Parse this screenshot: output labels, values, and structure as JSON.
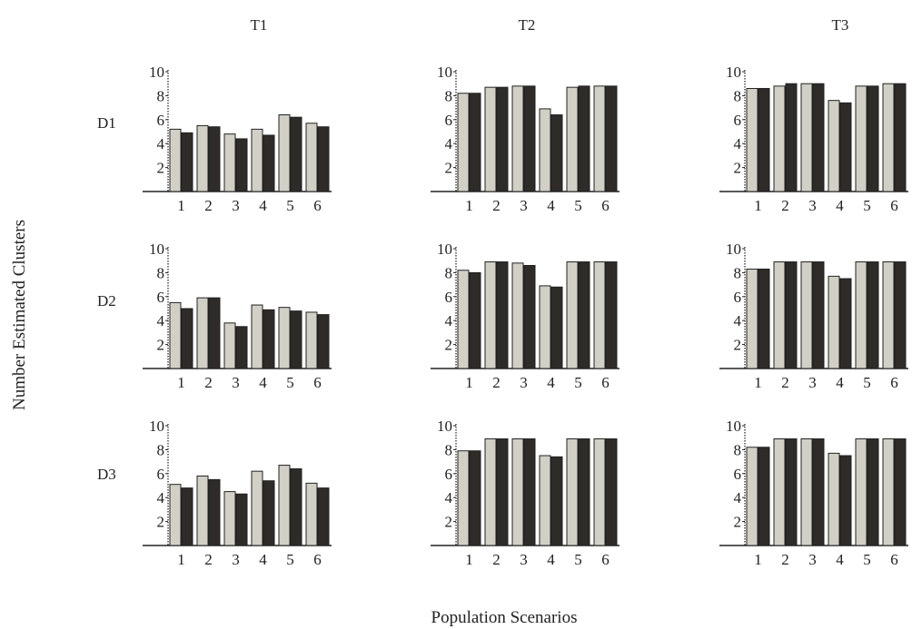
{
  "figure": {
    "y_title": "Number Estimated Clusters",
    "x_title": "Population Scenarios",
    "col_titles": [
      "T1",
      "T2",
      "T3"
    ],
    "row_titles": [
      "D1",
      "D2",
      "D3"
    ]
  },
  "colors": {
    "light_bar": "#d2d0c6",
    "dark_bar": "#2e2b28",
    "axis": "#222222"
  },
  "chart_data": [
    {
      "type": "bar",
      "row": "D1",
      "col": "T1",
      "categories": [
        "1",
        "2",
        "3",
        "4",
        "5",
        "6"
      ],
      "ylim": [
        0,
        10
      ],
      "yticks": [
        "2",
        "4",
        "6",
        "8",
        "10"
      ],
      "series": [
        {
          "values": [
            5.2,
            5.5,
            4.8,
            5.2,
            6.4,
            5.7
          ]
        },
        {
          "values": [
            4.9,
            5.4,
            4.4,
            4.7,
            6.2,
            5.4
          ]
        }
      ]
    },
    {
      "type": "bar",
      "row": "D1",
      "col": "T2",
      "categories": [
        "1",
        "2",
        "3",
        "4",
        "5",
        "6"
      ],
      "ylim": [
        0,
        10
      ],
      "yticks": [
        "2",
        "4",
        "6",
        "8",
        "10"
      ],
      "series": [
        {
          "values": [
            8.2,
            8.7,
            8.8,
            6.9,
            8.7,
            8.8
          ]
        },
        {
          "values": [
            8.2,
            8.7,
            8.8,
            6.4,
            8.8,
            8.8
          ]
        }
      ]
    },
    {
      "type": "bar",
      "row": "D1",
      "col": "T3",
      "categories": [
        "1",
        "2",
        "3",
        "4",
        "5",
        "6"
      ],
      "ylim": [
        0,
        10
      ],
      "yticks": [
        "2",
        "4",
        "6",
        "8",
        "10"
      ],
      "series": [
        {
          "values": [
            8.6,
            8.8,
            9.0,
            7.6,
            8.8,
            9.0
          ]
        },
        {
          "values": [
            8.6,
            9.0,
            9.0,
            7.4,
            8.8,
            9.0
          ]
        }
      ]
    },
    {
      "type": "bar",
      "row": "D2",
      "col": "T1",
      "categories": [
        "1",
        "2",
        "3",
        "4",
        "5",
        "6"
      ],
      "ylim": [
        0,
        10
      ],
      "yticks": [
        "2",
        "4",
        "6",
        "8",
        "10"
      ],
      "series": [
        {
          "values": [
            5.5,
            5.9,
            3.8,
            5.3,
            5.1,
            4.7
          ]
        },
        {
          "values": [
            5.0,
            5.9,
            3.5,
            4.9,
            4.8,
            4.5
          ]
        }
      ]
    },
    {
      "type": "bar",
      "row": "D2",
      "col": "T2",
      "categories": [
        "1",
        "2",
        "3",
        "4",
        "5",
        "6"
      ],
      "ylim": [
        0,
        10
      ],
      "yticks": [
        "2",
        "4",
        "6",
        "8",
        "10"
      ],
      "series": [
        {
          "values": [
            8.2,
            8.9,
            8.8,
            6.9,
            8.9,
            8.9
          ]
        },
        {
          "values": [
            8.0,
            8.9,
            8.6,
            6.8,
            8.9,
            8.9
          ]
        }
      ]
    },
    {
      "type": "bar",
      "row": "D2",
      "col": "T3",
      "categories": [
        "1",
        "2",
        "3",
        "4",
        "5",
        "6"
      ],
      "ylim": [
        0,
        10
      ],
      "yticks": [
        "2",
        "4",
        "6",
        "8",
        "10"
      ],
      "series": [
        {
          "values": [
            8.3,
            8.9,
            8.9,
            7.7,
            8.9,
            8.9
          ]
        },
        {
          "values": [
            8.3,
            8.9,
            8.9,
            7.5,
            8.9,
            8.9
          ]
        }
      ]
    },
    {
      "type": "bar",
      "row": "D3",
      "col": "T1",
      "categories": [
        "1",
        "2",
        "3",
        "4",
        "5",
        "6"
      ],
      "ylim": [
        0,
        10
      ],
      "yticks": [
        "2",
        "4",
        "6",
        "8",
        "10"
      ],
      "series": [
        {
          "values": [
            5.1,
            5.8,
            4.5,
            6.2,
            6.7,
            5.2
          ]
        },
        {
          "values": [
            4.8,
            5.5,
            4.3,
            5.4,
            6.4,
            4.8
          ]
        }
      ]
    },
    {
      "type": "bar",
      "row": "D3",
      "col": "T2",
      "categories": [
        "1",
        "2",
        "3",
        "4",
        "5",
        "6"
      ],
      "ylim": [
        0,
        10
      ],
      "yticks": [
        "2",
        "4",
        "6",
        "8",
        "10"
      ],
      "series": [
        {
          "values": [
            7.9,
            8.9,
            8.9,
            7.5,
            8.9,
            8.9
          ]
        },
        {
          "values": [
            7.9,
            8.9,
            8.9,
            7.4,
            8.9,
            8.9
          ]
        }
      ]
    },
    {
      "type": "bar",
      "row": "D3",
      "col": "T3",
      "categories": [
        "1",
        "2",
        "3",
        "4",
        "5",
        "6"
      ],
      "ylim": [
        0,
        10
      ],
      "yticks": [
        "2",
        "4",
        "6",
        "8",
        "10"
      ],
      "series": [
        {
          "values": [
            8.2,
            8.9,
            8.9,
            7.7,
            8.9,
            8.9
          ]
        },
        {
          "values": [
            8.2,
            8.9,
            8.9,
            7.5,
            8.9,
            8.9
          ]
        }
      ]
    }
  ]
}
